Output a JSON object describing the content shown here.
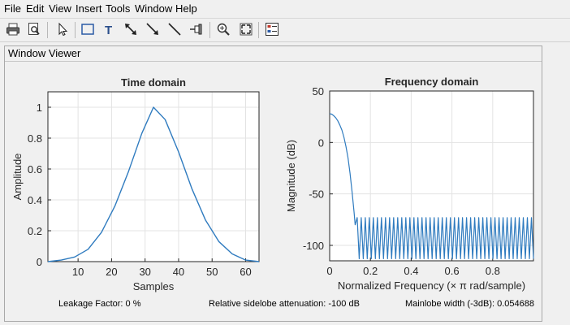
{
  "menu": [
    "File",
    "Edit",
    "View",
    "Insert",
    "Tools",
    "Window",
    "Help"
  ],
  "toolbar": {
    "icons": [
      "print-icon",
      "print-preview-icon",
      "pointer-icon",
      "rectangle-icon",
      "text-icon",
      "double-arrow-icon",
      "arrow-icon",
      "line-icon",
      "pin-icon",
      "zoom-in-icon",
      "fit-to-window-icon",
      "legend-icon"
    ]
  },
  "panel": {
    "title": "Window Viewer"
  },
  "chart_data": [
    {
      "type": "line",
      "title": "Time domain",
      "xlabel": "Samples",
      "ylabel": "Amplitude",
      "xlim": [
        1,
        64
      ],
      "ylim": [
        0,
        1.1
      ],
      "xticks": [
        10,
        20,
        30,
        40,
        50,
        60
      ],
      "yticks": [
        0,
        0.2,
        0.4,
        0.6,
        0.8,
        1
      ],
      "xtick_labels": [
        "10",
        "20",
        "30",
        "40",
        "50",
        "60"
      ],
      "ytick_labels": [
        "0",
        "0.2",
        "0.4",
        "0.6",
        "0.8",
        "1"
      ],
      "grid": true,
      "color": "#2f7bbf",
      "series": [
        {
          "x": [
            1,
            5,
            9,
            13,
            17,
            21,
            25,
            29,
            32.5,
            36,
            40,
            44,
            48,
            52,
            56,
            60,
            64
          ],
          "values": [
            0.0,
            0.01,
            0.03,
            0.08,
            0.19,
            0.36,
            0.58,
            0.83,
            1.0,
            0.92,
            0.71,
            0.47,
            0.27,
            0.13,
            0.05,
            0.01,
            0.0
          ]
        }
      ]
    },
    {
      "type": "line",
      "title": "Frequency domain",
      "xlabel": "Normalized Frequency  (× π rad/sample)",
      "ylabel": "Magnitude (dB)",
      "xlim": [
        0,
        1
      ],
      "ylim": [
        -115,
        50
      ],
      "xticks": [
        0,
        0.2,
        0.4,
        0.6,
        0.8
      ],
      "yticks": [
        -100,
        -50,
        0,
        50
      ],
      "xtick_labels": [
        "0",
        "0.2",
        "0.4",
        "0.6",
        "0.8"
      ],
      "ytick_labels": [
        "-100",
        "-50",
        "0",
        "50"
      ],
      "grid": true,
      "color": "#2f7bbf",
      "mainlobe": {
        "x": [
          0,
          0.01,
          0.02,
          0.03,
          0.04,
          0.05,
          0.06,
          0.07,
          0.08,
          0.09,
          0.1,
          0.11,
          0.12,
          0.125
        ],
        "values": [
          28,
          27.5,
          26,
          24,
          21,
          17,
          12,
          5,
          -4,
          -15,
          -30,
          -48,
          -68,
          -80
        ]
      },
      "sidelobes": {
        "x_start": 0.125,
        "x_end": 1.0,
        "count": 44,
        "peak_db": -73,
        "null_db": -113
      }
    }
  ],
  "status": {
    "leakage": "Leakage Factor: 0 %",
    "sidelobe": "Relative sidelobe attenuation: -100 dB",
    "mainlobe": "Mainlobe width (-3dB): 0.054688"
  }
}
